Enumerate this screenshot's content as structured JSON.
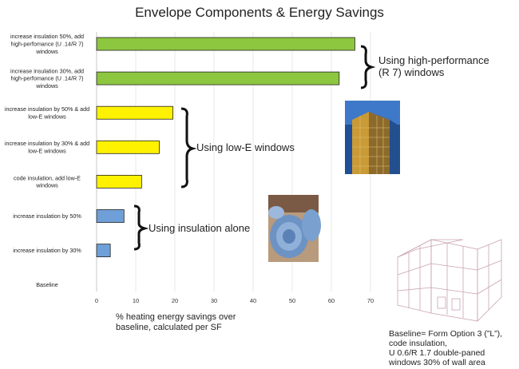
{
  "chart_data": {
    "type": "bar",
    "orientation": "horizontal",
    "title": "Envelope Components & Energy Savings",
    "xlabel": "% heating energy savings over baseline, calculated per SF",
    "ylabel": "",
    "xlim": [
      0,
      70
    ],
    "xticks": [
      0,
      10,
      20,
      30,
      40,
      50,
      60,
      70
    ],
    "grid": true,
    "categories": [
      "increase insulation 50%, add high-perfomance (U .14/R 7) windows",
      "increase insulation 30%, add high-perfomance (U .14/R 7) windows",
      "increase insulation by 50% & add low-E windows",
      "increase insulation by 30% & add low-E windows",
      "code insulation, add low-E windows",
      "increase insulation by 50%",
      "increase insulation by 30%",
      "Baseline"
    ],
    "category_lines": [
      [
        "increase insulation 50%, add",
        "high-perfomance (U .14/R 7)",
        "windows"
      ],
      [
        "increase insulation 30%, add",
        "high-perfomance (U .14/R 7)",
        "windows"
      ],
      [
        "increase insulation by 50% & add",
        "low-E windows"
      ],
      [
        "increase insulation by 30% & add",
        "low-E windows"
      ],
      [
        "code insulation, add low-E",
        "windows"
      ],
      [
        "increase insulation by 50%"
      ],
      [
        "increase insulation by 30%"
      ],
      [
        "Baseline"
      ]
    ],
    "values": [
      66,
      62,
      19.5,
      16,
      11.5,
      7,
      3.5,
      0
    ],
    "bar_colors": [
      "#8dc63f",
      "#8dc63f",
      "#fff200",
      "#fff200",
      "#fff200",
      "#6f9fd8",
      "#6f9fd8",
      "#6f9fd8"
    ],
    "annotations": {
      "group_high_performance": [
        "Using high-performance",
        "(R 7) windows"
      ],
      "group_low_e": "Using low-E windows",
      "group_insulation": "Using insulation alone",
      "xlabel_lines": [
        "% heating energy savings over",
        "baseline, calculated per SF"
      ],
      "baseline_note": [
        "Baseline= Form Option 3 (”L”),",
        "code insulation,",
        "U 0.6/R 1.7 double-paned",
        "windows 30% of wall area"
      ]
    }
  }
}
